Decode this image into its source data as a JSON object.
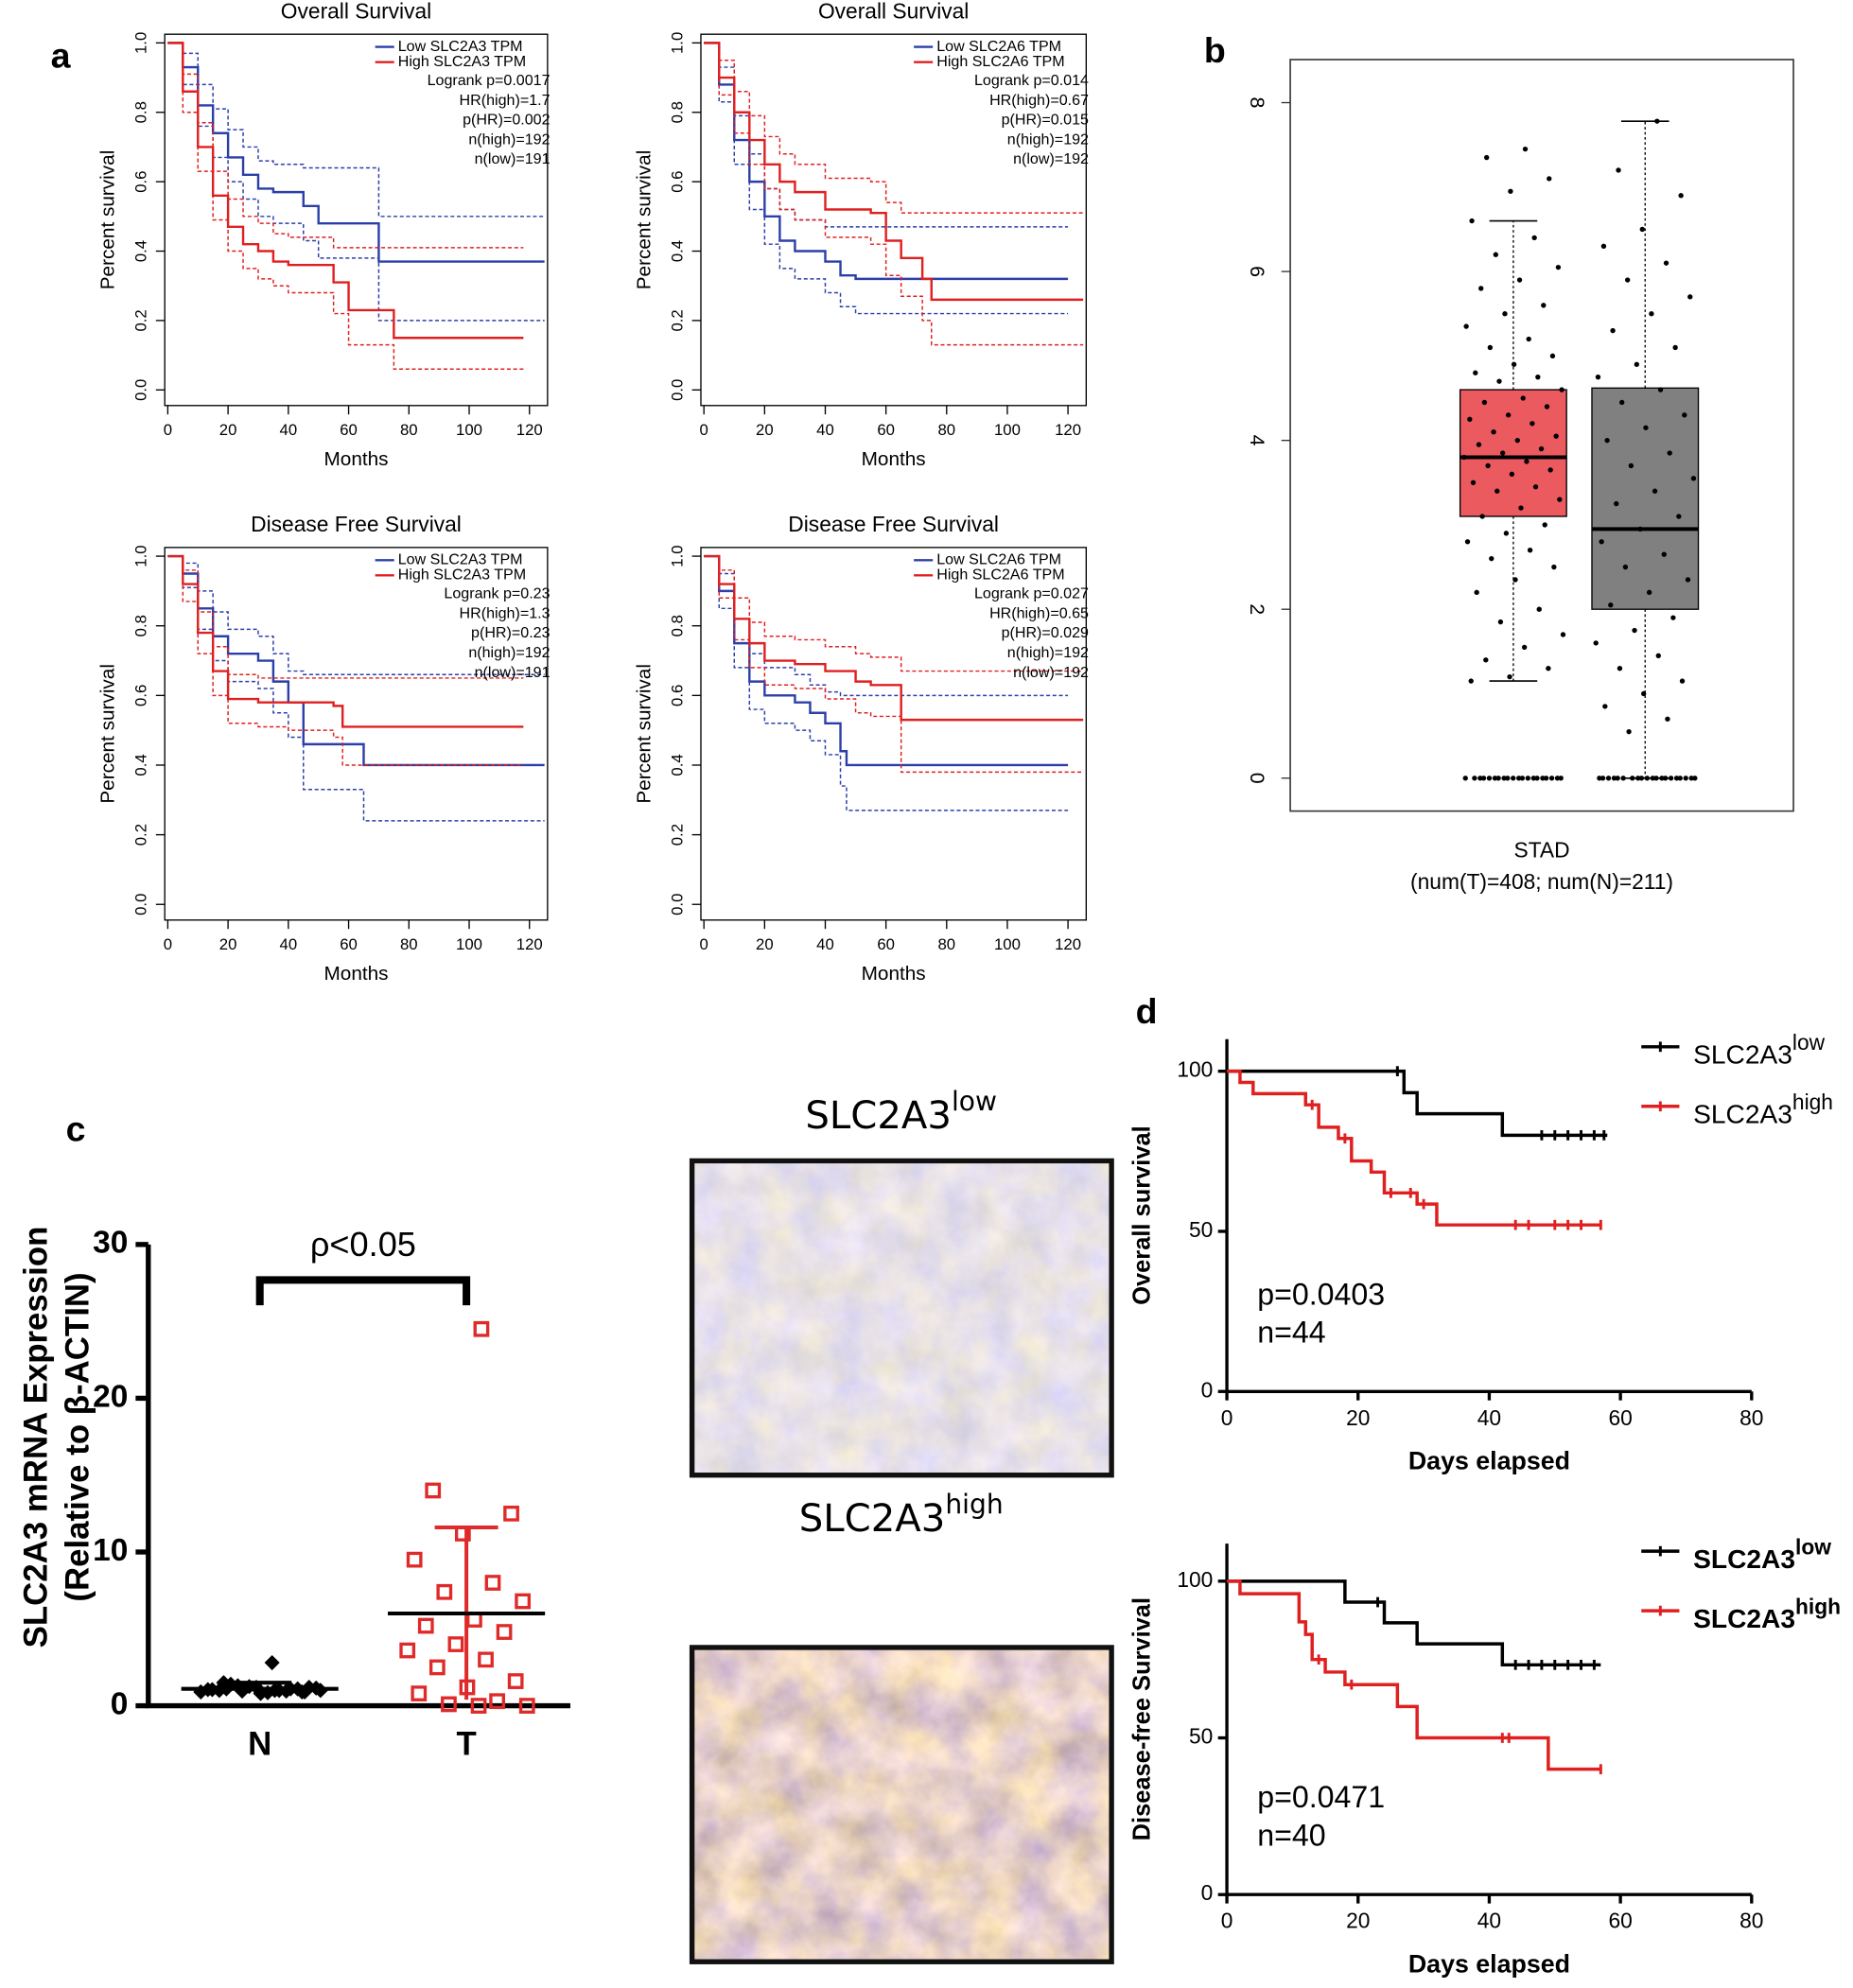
{
  "panel_labels": [
    "a",
    "b",
    "c",
    "d"
  ],
  "images": [
    {
      "title": "SLC2A3",
      "superscript": "low"
    },
    {
      "title": "SLC2A3",
      "superscript": "high"
    }
  ],
  "chart_data": [
    {
      "type": "survival",
      "frame": "box",
      "title": "Overall Survival",
      "xlabel": "Months",
      "ylabel": "Percent survival",
      "xlim": [
        -1,
        126
      ],
      "ylim": [
        -0.045,
        1.025
      ],
      "xticks": [
        0,
        20,
        40,
        60,
        80,
        100,
        120
      ],
      "yticks": [
        {
          "value": 0,
          "label": "0.0"
        },
        0.2,
        0.4,
        0.6,
        0.8,
        {
          "value": 1,
          "label": "1.0"
        }
      ],
      "series": [
        {
          "name": "Low SLC2A3 TPM",
          "color": "#2c3fa8",
          "x": [
            0,
            5,
            10,
            15,
            20,
            25,
            30,
            35,
            45,
            50,
            58,
            70,
            74,
            125
          ],
          "values": [
            1.0,
            0.93,
            0.82,
            0.74,
            0.67,
            0.62,
            0.58,
            0.57,
            0.53,
            0.48,
            0.48,
            0.37,
            0.37,
            0.37
          ],
          "upper": [
            1.0,
            0.97,
            0.88,
            0.81,
            0.75,
            0.7,
            0.66,
            0.65,
            0.64,
            0.64,
            0.64,
            0.5,
            0.5,
            0.5
          ],
          "lower": [
            1.0,
            0.88,
            0.76,
            0.67,
            0.6,
            0.55,
            0.5,
            0.48,
            0.43,
            0.38,
            0.38,
            0.2,
            0.2,
            0.2
          ]
        },
        {
          "name": "High SLC2A3 TPM",
          "color": "#e02020",
          "x": [
            0,
            5,
            10,
            15,
            20,
            25,
            30,
            35,
            40,
            55,
            60,
            72,
            75,
            118
          ],
          "values": [
            1.0,
            0.86,
            0.7,
            0.56,
            0.47,
            0.42,
            0.4,
            0.37,
            0.36,
            0.31,
            0.23,
            0.23,
            0.15,
            0.15
          ],
          "upper": [
            1.0,
            0.91,
            0.77,
            0.63,
            0.55,
            0.5,
            0.48,
            0.45,
            0.44,
            0.41,
            0.41,
            0.41,
            0.41,
            0.41
          ],
          "lower": [
            1.0,
            0.8,
            0.63,
            0.49,
            0.4,
            0.35,
            0.32,
            0.3,
            0.28,
            0.22,
            0.13,
            0.13,
            0.06,
            0.06
          ]
        }
      ],
      "annotations": [
        "Logrank p=0.0017",
        "HR(high)=1.7",
        "p(HR)=0.002",
        "n(high)=192",
        "n(low)=191"
      ]
    },
    {
      "type": "survival",
      "frame": "box",
      "title": "Overall Survival",
      "xlabel": "Months",
      "ylabel": "Percent survival",
      "xlim": [
        -1,
        126
      ],
      "ylim": [
        -0.045,
        1.025
      ],
      "xticks": [
        0,
        20,
        40,
        60,
        80,
        100,
        120
      ],
      "yticks": [
        {
          "value": 0,
          "label": "0.0"
        },
        0.2,
        0.4,
        0.6,
        0.8,
        {
          "value": 1,
          "label": "1.0"
        }
      ],
      "series": [
        {
          "name": "Low SLC2A6 TPM",
          "color": "#2c3fa8",
          "x": [
            0,
            5,
            10,
            15,
            20,
            25,
            30,
            40,
            45,
            50,
            120
          ],
          "values": [
            1,
            0.88,
            0.72,
            0.6,
            0.5,
            0.43,
            0.4,
            0.37,
            0.33,
            0.32,
            0.32
          ],
          "upper": [
            1,
            0.93,
            0.79,
            0.68,
            0.58,
            0.52,
            0.49,
            0.47,
            0.47,
            0.47,
            0.47
          ],
          "lower": [
            1,
            0.83,
            0.65,
            0.52,
            0.42,
            0.35,
            0.32,
            0.28,
            0.24,
            0.22,
            0.22
          ]
        },
        {
          "name": "High SLC2A6 TPM",
          "color": "#e02020",
          "x": [
            0,
            5,
            10,
            15,
            20,
            25,
            30,
            40,
            55,
            60,
            65,
            72,
            75,
            125
          ],
          "values": [
            1,
            0.9,
            0.8,
            0.72,
            0.65,
            0.6,
            0.57,
            0.52,
            0.51,
            0.43,
            0.38,
            0.32,
            0.26,
            0.26
          ],
          "upper": [
            1,
            0.95,
            0.86,
            0.79,
            0.73,
            0.68,
            0.65,
            0.61,
            0.6,
            0.54,
            0.51,
            0.51,
            0.51,
            0.51
          ],
          "lower": [
            1,
            0.85,
            0.74,
            0.65,
            0.58,
            0.52,
            0.49,
            0.44,
            0.42,
            0.33,
            0.27,
            0.2,
            0.13,
            0.13
          ]
        }
      ],
      "annotations": [
        "Logrank p=0.014",
        "HR(high)=0.67",
        "p(HR)=0.015",
        "n(high)=192",
        "n(low)=192"
      ]
    },
    {
      "type": "survival",
      "frame": "box",
      "title": "Disease Free Survival",
      "xlabel": "Months",
      "ylabel": "Percent survival",
      "xlim": [
        -1,
        126
      ],
      "ylim": [
        -0.045,
        1.025
      ],
      "xticks": [
        0,
        20,
        40,
        60,
        80,
        100,
        120
      ],
      "yticks": [
        {
          "value": 0,
          "label": "0.0"
        },
        0.2,
        0.4,
        0.6,
        0.8,
        {
          "value": 1,
          "label": "1.0"
        }
      ],
      "series": [
        {
          "name": "Low SLC2A3 TPM",
          "color": "#2c3fa8",
          "x": [
            0,
            5,
            10,
            15,
            20,
            30,
            35,
            40,
            45,
            65,
            125
          ],
          "values": [
            1,
            0.95,
            0.85,
            0.77,
            0.72,
            0.7,
            0.64,
            0.58,
            0.46,
            0.4,
            0.4
          ],
          "upper": [
            1,
            0.98,
            0.9,
            0.84,
            0.79,
            0.77,
            0.72,
            0.67,
            0.66,
            0.66,
            0.66
          ],
          "lower": [
            1,
            0.91,
            0.79,
            0.7,
            0.64,
            0.62,
            0.55,
            0.48,
            0.33,
            0.24,
            0.24
          ]
        },
        {
          "name": "High SLC2A3 TPM",
          "color": "#e02020",
          "x": [
            0,
            5,
            10,
            15,
            20,
            30,
            40,
            55,
            58,
            118
          ],
          "values": [
            1,
            0.92,
            0.78,
            0.67,
            0.59,
            0.58,
            0.58,
            0.57,
            0.51,
            0.51
          ],
          "upper": [
            1,
            0.96,
            0.84,
            0.74,
            0.66,
            0.65,
            0.65,
            0.65,
            0.65,
            0.65
          ],
          "lower": [
            1,
            0.87,
            0.72,
            0.6,
            0.52,
            0.51,
            0.5,
            0.48,
            0.4,
            0.4
          ]
        }
      ],
      "annotations": [
        "Logrank p=0.23",
        "HR(high)=1.3",
        "p(HR)=0.23",
        "n(high)=192",
        "n(low)=191"
      ]
    },
    {
      "type": "survival",
      "frame": "box",
      "title": "Disease Free Survival",
      "xlabel": "Months",
      "ylabel": "Percent survival",
      "xlim": [
        -1,
        126
      ],
      "ylim": [
        -0.045,
        1.025
      ],
      "xticks": [
        0,
        20,
        40,
        60,
        80,
        100,
        120
      ],
      "yticks": [
        {
          "value": 0,
          "label": "0.0"
        },
        0.2,
        0.4,
        0.6,
        0.8,
        {
          "value": 1,
          "label": "1.0"
        }
      ],
      "series": [
        {
          "name": "Low SLC2A6 TPM",
          "color": "#2c3fa8",
          "x": [
            0,
            5,
            10,
            15,
            20,
            30,
            35,
            40,
            45,
            47,
            120
          ],
          "values": [
            1,
            0.9,
            0.75,
            0.64,
            0.6,
            0.58,
            0.55,
            0.52,
            0.44,
            0.4,
            0.4
          ],
          "upper": [
            1,
            0.95,
            0.82,
            0.72,
            0.68,
            0.66,
            0.63,
            0.61,
            0.6,
            0.6,
            0.6
          ],
          "lower": [
            1,
            0.85,
            0.68,
            0.56,
            0.52,
            0.5,
            0.47,
            0.43,
            0.34,
            0.27,
            0.27
          ]
        },
        {
          "name": "High SLC2A6 TPM",
          "color": "#e02020",
          "x": [
            0,
            5,
            10,
            15,
            20,
            30,
            40,
            50,
            55,
            65,
            125
          ],
          "values": [
            1,
            0.92,
            0.82,
            0.75,
            0.7,
            0.69,
            0.67,
            0.64,
            0.63,
            0.53,
            0.53
          ],
          "upper": [
            1,
            0.96,
            0.88,
            0.81,
            0.77,
            0.76,
            0.74,
            0.72,
            0.71,
            0.67,
            0.67
          ],
          "lower": [
            1,
            0.88,
            0.76,
            0.68,
            0.63,
            0.62,
            0.59,
            0.55,
            0.54,
            0.38,
            0.38
          ]
        }
      ],
      "annotations": [
        "Logrank p=0.027",
        "HR(high)=0.65",
        "p(HR)=0.029",
        "n(high)=192",
        "n(low)=192"
      ]
    },
    {
      "type": "box",
      "xlabel": [
        "STAD",
        "(num(T)=408; num(N)=211)"
      ],
      "ylim": [
        -0.39,
        8.51
      ],
      "yticks": [
        0,
        2,
        4,
        6,
        8
      ],
      "boxes": [
        {
          "color": "#eb5a5f",
          "q1": 3.1,
          "median": 3.8,
          "q3": 4.6,
          "whisker_low": 1.15,
          "whisker_high": 6.6,
          "points": [
            7.45,
            7.35,
            7.1,
            6.95,
            6.6,
            6.4,
            6.2,
            6.05,
            5.9,
            5.8,
            5.6,
            5.5,
            5.35,
            5.2,
            5.1,
            5.0,
            4.9,
            4.8,
            4.75,
            4.7,
            4.6,
            4.5,
            4.45,
            4.4,
            4.3,
            4.25,
            4.2,
            4.1,
            4.05,
            4.0,
            3.95,
            3.9,
            3.85,
            3.8,
            3.75,
            3.7,
            3.65,
            3.6,
            3.5,
            3.45,
            3.4,
            3.3,
            3.2,
            3.1,
            3.0,
            2.9,
            2.8,
            2.7,
            2.6,
            2.5,
            2.35,
            2.2,
            2.0,
            1.85,
            1.7,
            1.55,
            1.4,
            1.3,
            1.2,
            1.15,
            0,
            0,
            0,
            0,
            0,
            0,
            0,
            0,
            0,
            0,
            0,
            0,
            0,
            0,
            0,
            0,
            0,
            0,
            0,
            0
          ]
        },
        {
          "color": "#808080",
          "q1": 2.0,
          "median": 2.95,
          "q3": 4.62,
          "whisker_low": 0,
          "whisker_high": 7.78,
          "points": [
            7.78,
            7.2,
            6.9,
            6.5,
            6.3,
            6.1,
            5.9,
            5.7,
            5.5,
            5.3,
            5.1,
            4.9,
            4.75,
            4.6,
            4.45,
            4.3,
            4.15,
            4.0,
            3.85,
            3.7,
            3.55,
            3.4,
            3.25,
            3.1,
            2.95,
            2.8,
            2.65,
            2.5,
            2.35,
            2.2,
            2.05,
            1.9,
            1.75,
            1.6,
            1.45,
            1.3,
            1.15,
            1.0,
            0.85,
            0.7,
            0.55,
            0,
            0,
            0,
            0,
            0,
            0,
            0,
            0,
            0,
            0,
            0,
            0,
            0,
            0,
            0,
            0,
            0,
            0,
            0,
            0
          ]
        }
      ]
    },
    {
      "type": "dot",
      "ylabel": [
        "SLC2A3 mRNA Expression",
        "(Relative to β-ACTIN)"
      ],
      "categories": [
        "N",
        "T"
      ],
      "ylim": [
        0,
        30
      ],
      "yticks": [
        0,
        10,
        20,
        30
      ],
      "significance": "ρ<0.05",
      "groups": [
        {
          "color": "#000000",
          "marker": "diamond",
          "mean": 1.1,
          "sd": 0.4,
          "values": [
            1.0,
            1.1,
            0.9,
            1.2,
            1.05,
            0.95,
            1.3,
            1.15,
            0.85,
            1.0,
            1.1,
            1.25,
            0.9,
            1.0,
            1.4,
            1.2,
            0.8,
            1.05,
            1.1,
            0.95,
            1.0,
            2.8,
            1.5,
            0.9
          ]
        },
        {
          "color": "#e02a2a",
          "marker": "square",
          "mean": 6.0,
          "sd": 5.6,
          "values": [
            24.5,
            14,
            12.5,
            11.2,
            9.5,
            8.0,
            7.4,
            6.8,
            5.6,
            5.2,
            4.8,
            4.0,
            3.6,
            3.0,
            2.5,
            1.6,
            1.2,
            0.8,
            0.3,
            0.1,
            0,
            0
          ]
        }
      ]
    },
    {
      "type": "survival",
      "frame": "axes",
      "xlabel": "Days elapsed",
      "ylabel": "Overall survival",
      "xlim": [
        0,
        80
      ],
      "ylim": [
        0,
        110
      ],
      "xticks": [
        0,
        20,
        40,
        60,
        80
      ],
      "yticks": [
        0,
        50,
        100
      ],
      "legend_bold": false,
      "series": [
        {
          "name": "SLC2A3",
          "superscript": "low",
          "color": "#000000",
          "x": [
            0,
            27,
            29,
            42,
            58
          ],
          "values": [
            100,
            93.3,
            86.7,
            80,
            80
          ],
          "censored": [
            26,
            48,
            50,
            52,
            54,
            56,
            57.5
          ]
        },
        {
          "name": "SLC2A3",
          "superscript": "high",
          "color": "#e02020",
          "x": [
            0,
            2,
            4,
            12,
            14,
            17,
            19,
            22,
            24,
            29,
            32,
            57
          ],
          "values": [
            100,
            96.5,
            93,
            89.5,
            82.5,
            79,
            72,
            68.5,
            62,
            58.5,
            52,
            52
          ],
          "censored": [
            13,
            18,
            25,
            28,
            30,
            44,
            46,
            50,
            52,
            54,
            57
          ]
        }
      ],
      "annotations": [
        "p=0.0403",
        "n=44"
      ]
    },
    {
      "type": "survival",
      "frame": "axes",
      "xlabel": "Days elapsed",
      "ylabel": "Disease-free Survival",
      "xlim": [
        0,
        80
      ],
      "ylim": [
        0,
        112
      ],
      "xticks": [
        0,
        20,
        40,
        60,
        80
      ],
      "yticks": [
        0,
        50,
        100
      ],
      "legend_bold": true,
      "series": [
        {
          "name": "SLC2A3",
          "superscript": "low",
          "color": "#000000",
          "x": [
            0,
            18,
            24,
            29,
            42,
            57
          ],
          "values": [
            100,
            93.3,
            86.7,
            80,
            73.3,
            73.3
          ],
          "censored": [
            23,
            44,
            46,
            48,
            50,
            52,
            54,
            56
          ]
        },
        {
          "name": "SLC2A3",
          "superscript": "high",
          "color": "#e02020",
          "x": [
            0,
            2,
            11,
            12,
            13,
            15,
            18,
            26,
            29,
            49,
            57
          ],
          "values": [
            100,
            96,
            87,
            83,
            75,
            71,
            67,
            60,
            50,
            40,
            40
          ],
          "censored": [
            14,
            19,
            42,
            43,
            57
          ]
        }
      ],
      "annotations": [
        "p=0.0471",
        "n=40"
      ]
    }
  ]
}
